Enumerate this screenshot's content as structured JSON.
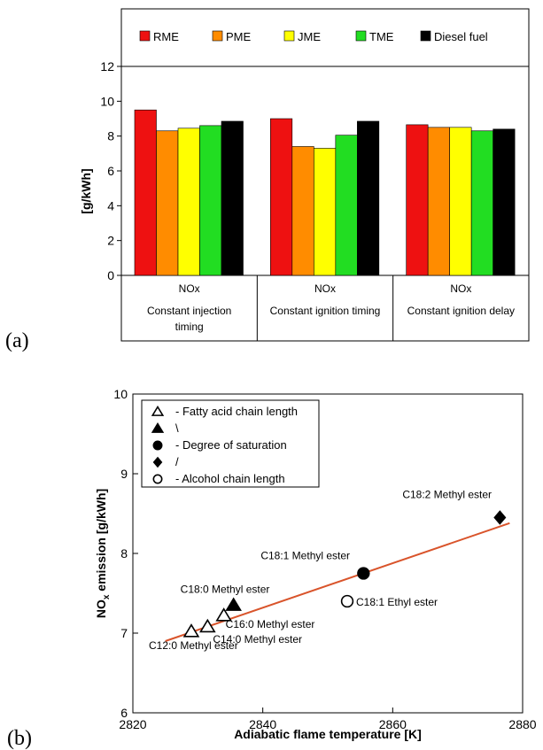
{
  "panels": {
    "a_label": "(a)",
    "b_label": "(b)"
  },
  "chart_data": [
    {
      "type": "bar",
      "ylabel": "[g/kWh]",
      "ylim": [
        0,
        12
      ],
      "yticks": [
        0,
        2,
        4,
        6,
        8,
        10,
        12
      ],
      "groups": [
        {
          "line1": "NOx",
          "line2": "Constant injection",
          "line3": "timing"
        },
        {
          "line1": "NOx",
          "line2": "Constant ignition timing",
          "line3": ""
        },
        {
          "line1": "NOx",
          "line2": "Constant ignition delay",
          "line3": ""
        }
      ],
      "legend_position": "top",
      "series": [
        {
          "name": "RME",
          "color": "#ee1111",
          "values": [
            9.5,
            9.0,
            8.65
          ]
        },
        {
          "name": "PME",
          "color": "#ff8c00",
          "values": [
            8.3,
            7.4,
            8.5
          ]
        },
        {
          "name": "JME",
          "color": "#ffff00",
          "values": [
            8.45,
            7.3,
            8.5
          ]
        },
        {
          "name": "TME",
          "color": "#22dd22",
          "values": [
            8.6,
            8.05,
            8.3
          ]
        },
        {
          "name": "Diesel fuel",
          "color": "#000000",
          "values": [
            8.85,
            8.85,
            8.4
          ]
        }
      ]
    },
    {
      "type": "scatter",
      "xlabel": "Adiabatic flame temperature [K]",
      "ylabel_main": "NO",
      "ylabel_sub": "x",
      "ylabel_rest": " emission [g/kWh]",
      "xlim": [
        2820,
        2880
      ],
      "ylim": [
        6,
        10
      ],
      "xticks": [
        2820,
        2840,
        2860,
        2880
      ],
      "yticks": [
        6,
        7,
        8,
        9,
        10
      ],
      "legend_position": "top-left",
      "legend": [
        {
          "marker": "triangle-open",
          "label": "- Fatty acid chain length"
        },
        {
          "marker": "triangle-filled",
          "label": "\\"
        },
        {
          "marker": "circle-filled",
          "label": "- Degree of saturation"
        },
        {
          "marker": "diamond-filled",
          "label": "/"
        },
        {
          "marker": "circle-open",
          "label": "- Alcohol chain length"
        }
      ],
      "trendline": {
        "color": "#d9542b",
        "x": [
          2825,
          2878
        ],
        "y": [
          6.9,
          8.38
        ]
      },
      "points": [
        {
          "label": "C12:0 Methyl ester",
          "x": 2829,
          "y": 7.02,
          "marker": "triangle-open"
        },
        {
          "label": "C14:0 Methyl ester",
          "x": 2831.5,
          "y": 7.08,
          "marker": "triangle-open"
        },
        {
          "label": "C16:0 Methyl ester",
          "x": 2834,
          "y": 7.22,
          "marker": "triangle-open"
        },
        {
          "label": "C18:0 Methyl ester",
          "x": 2835.5,
          "y": 7.35,
          "marker": "triangle-filled"
        },
        {
          "label": "C18:1 Methyl ester",
          "x": 2855.5,
          "y": 7.75,
          "marker": "circle-filled"
        },
        {
          "label": "C18:1 Ethyl ester",
          "x": 2853,
          "y": 7.4,
          "marker": "circle-open"
        },
        {
          "label": "C18:2 Methyl ester",
          "x": 2876.5,
          "y": 8.45,
          "marker": "diamond-filled"
        }
      ]
    }
  ]
}
